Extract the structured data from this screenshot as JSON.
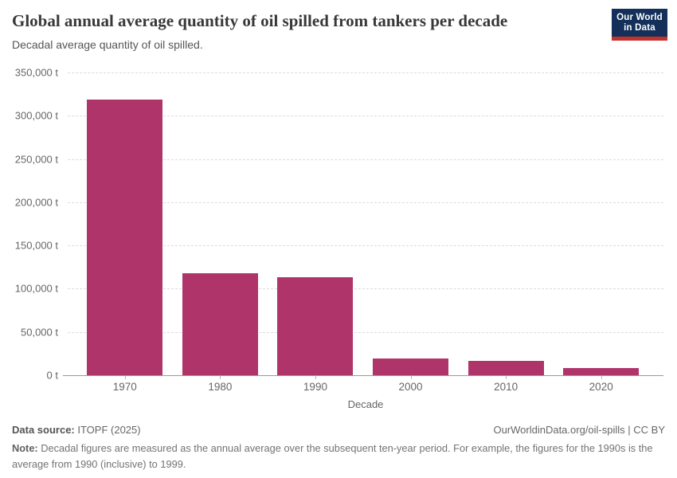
{
  "chart_data": {
    "type": "bar",
    "title": "Global annual average quantity of oil spilled from tankers per decade",
    "subtitle": "Decadal average quantity of oil spilled.",
    "categories": [
      "1970",
      "1980",
      "1990",
      "2000",
      "2010",
      "2020"
    ],
    "values": [
      319000,
      118000,
      113000,
      19600,
      16400,
      8000
    ],
    "unit": "t",
    "xlabel": "Decade",
    "ylabel": "",
    "ylim": [
      0,
      350000
    ],
    "ytick_step": 50000,
    "ytick_labels": [
      "0 t",
      "50,000 t",
      "100,000 t",
      "150,000 t",
      "200,000 t",
      "250,000 t",
      "300,000 t",
      "350,000 t"
    ],
    "bar_color": "#ae346a",
    "grid": "horizontal-dashed",
    "legend": "none"
  },
  "logo": {
    "line1": "Our World",
    "line2": "in Data",
    "bg_color": "#14305a",
    "accent_color": "#c5312b"
  },
  "footer": {
    "source_label": "Data source:",
    "source_value": " ITOPF (2025)",
    "rights": "OurWorldinData.org/oil-spills | CC BY",
    "note_label": "Note:",
    "note_text": " Decadal figures are measured as the annual average over the subsequent ten-year period. For example, the figures for the 1990s is the average from 1990 (inclusive) to 1999."
  }
}
